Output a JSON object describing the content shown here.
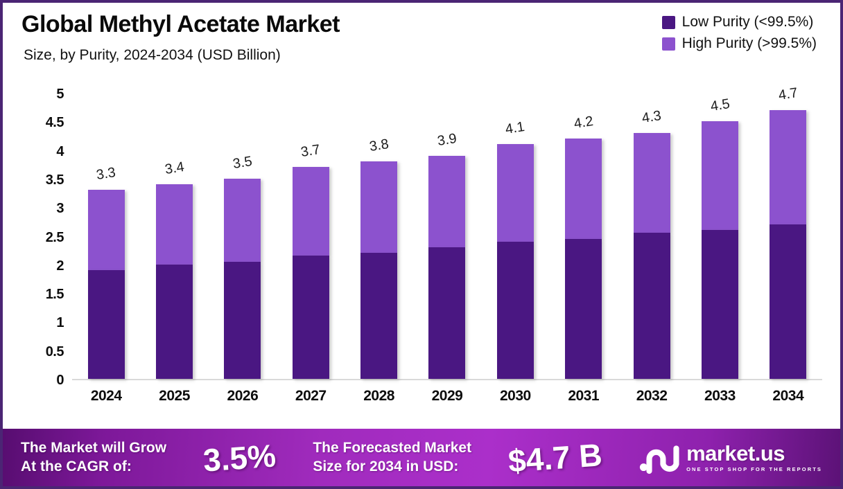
{
  "header": {
    "title": "Global Methyl Acetate Market",
    "subtitle": "Size, by Purity, 2024-2034 (USD Billion)"
  },
  "legend": [
    {
      "label": "Low Purity (<99.5%)",
      "color": "#4a1782"
    },
    {
      "label": "High Purity (>99.5%)",
      "color": "#8c52ce"
    }
  ],
  "chart_data": {
    "type": "bar",
    "stacked": true,
    "title": "Global Methyl Acetate Market Size, by Purity, 2024-2034 (USD Billion)",
    "categories": [
      "2024",
      "2025",
      "2026",
      "2027",
      "2028",
      "2029",
      "2030",
      "2031",
      "2032",
      "2033",
      "2034"
    ],
    "series": [
      {
        "name": "Low Purity (<99.5%)",
        "color": "#4a1782",
        "values": [
          1.9,
          2.0,
          2.05,
          2.15,
          2.2,
          2.3,
          2.4,
          2.45,
          2.55,
          2.6,
          2.7
        ]
      },
      {
        "name": "High Purity (>99.5%)",
        "color": "#8c52ce",
        "values": [
          1.4,
          1.4,
          1.45,
          1.55,
          1.6,
          1.6,
          1.7,
          1.75,
          1.75,
          1.9,
          2.0
        ]
      }
    ],
    "total_labels": [
      "3.3",
      "3.4",
      "3.5",
      "3.7",
      "3.8",
      "3.9",
      "4.1",
      "4.2",
      "4.3",
      "4.5",
      "4.7"
    ],
    "y_axis": {
      "min": 0,
      "max": 5,
      "ticks": [
        "5",
        "4.5",
        "4",
        "3.5",
        "3",
        "2.5",
        "2",
        "1.5",
        "1",
        "0.5",
        "0"
      ]
    },
    "grid": false,
    "legend_position": "top-right",
    "units": "USD Billion"
  },
  "banner": {
    "cagr_label_line1": "The Market will Grow",
    "cagr_label_line2": "At the CAGR of:",
    "cagr_value": "3.5%",
    "forecast_label_line1": "The Forecasted Market",
    "forecast_label_line2": "Size for 2034 in USD:",
    "forecast_value": "$4.7 B",
    "logo_name": "market.us",
    "logo_tagline": "ONE STOP SHOP FOR THE REPORTS"
  },
  "icons": {
    "logo_mark": "marketus-logo-mark"
  },
  "colors": {
    "series_low": "#4a1782",
    "series_high": "#8c52ce",
    "frame_border": "#4b2574",
    "banner_gradient_mid": "#ab2fca",
    "axis_line": "#d9d9d9"
  }
}
